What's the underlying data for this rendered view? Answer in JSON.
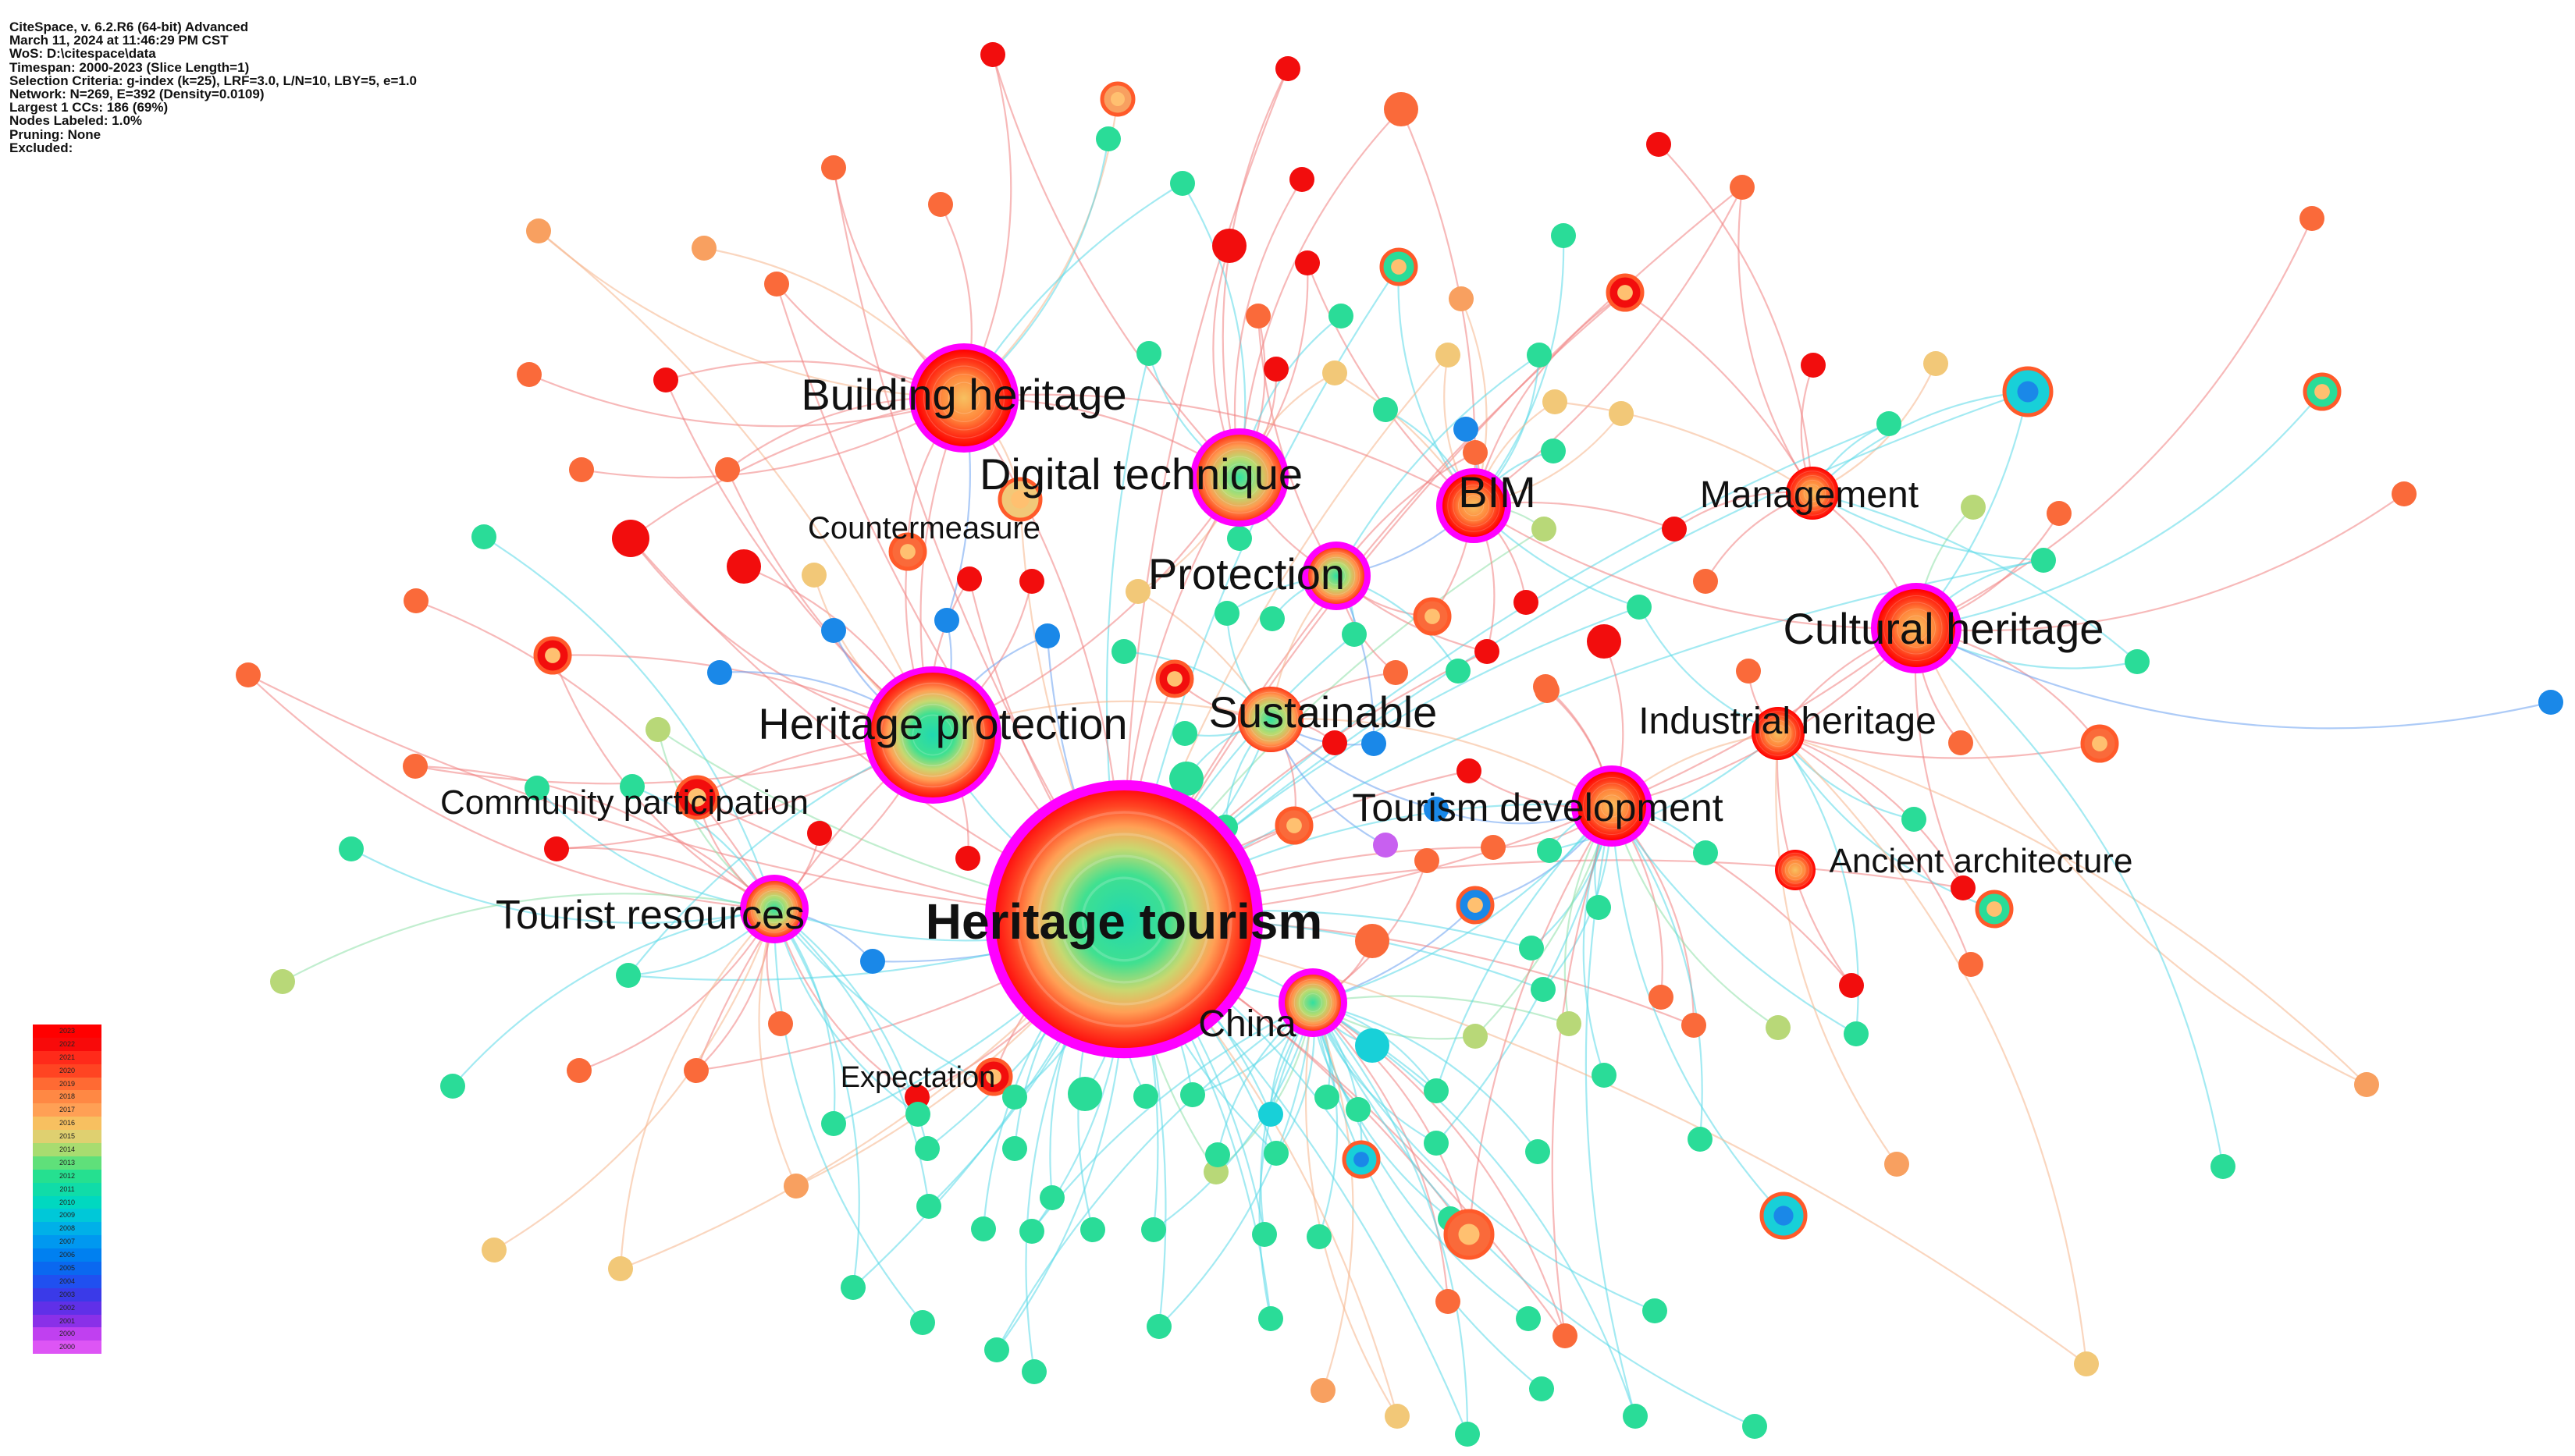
{
  "info_lines": [
    "CiteSpace, v. 6.2.R6 (64-bit) Advanced",
    "March 11, 2024 at 11:46:29 PM CST",
    "WoS: D:\\citespace\\data",
    "Timespan: 2000-2023 (Slice Length=1)",
    "Selection Criteria: g-index (k=25), LRF=3.0, L/N=10, LBY=5, e=1.0",
    "Network: N=269, E=392 (Density=0.0109)",
    "Largest 1 CCs: 186 (69%)",
    "Nodes Labeled: 1.0%",
    "Pruning: None",
    "Excluded:"
  ],
  "legend": [
    {
      "year": "2023",
      "color": "#ff0000"
    },
    {
      "year": "2022",
      "color": "#f80a0a"
    },
    {
      "year": "2021",
      "color": "#ff2a1a"
    },
    {
      "year": "2020",
      "color": "#ff4422"
    },
    {
      "year": "2019",
      "color": "#ff6a33"
    },
    {
      "year": "2018",
      "color": "#ff8844"
    },
    {
      "year": "2017",
      "color": "#ffa055"
    },
    {
      "year": "2016",
      "color": "#f7c060"
    },
    {
      "year": "2015",
      "color": "#dfd070"
    },
    {
      "year": "2014",
      "color": "#a8dc70"
    },
    {
      "year": "2013",
      "color": "#5fe07a"
    },
    {
      "year": "2012",
      "color": "#25e090"
    },
    {
      "year": "2011",
      "color": "#10dca8"
    },
    {
      "year": "2010",
      "color": "#00d8c0"
    },
    {
      "year": "2009",
      "color": "#00c8d8"
    },
    {
      "year": "2008",
      "color": "#00b0e8"
    },
    {
      "year": "2007",
      "color": "#0098f0"
    },
    {
      "year": "2006",
      "color": "#0080f0"
    },
    {
      "year": "2005",
      "color": "#0a68f0"
    },
    {
      "year": "2004",
      "color": "#2050f0"
    },
    {
      "year": "2003",
      "color": "#3a3ae8"
    },
    {
      "year": "2002",
      "color": "#6030e8"
    },
    {
      "year": "2001",
      "color": "#8a30e8"
    },
    {
      "year": "2000",
      "color": "#c040f0"
    },
    {
      "year": "2000",
      "color": "#dd55f5"
    }
  ],
  "keywords": [
    {
      "label": "Heritage tourism",
      "bold": true
    },
    {
      "label": "Building heritage"
    },
    {
      "label": "Digital technique"
    },
    {
      "label": "BIM"
    },
    {
      "label": "Management"
    },
    {
      "label": "Countermeasure"
    },
    {
      "label": "Protection"
    },
    {
      "label": "Cultural heritage"
    },
    {
      "label": "Heritage protection"
    },
    {
      "label": "Sustainable"
    },
    {
      "label": "Industrial heritage"
    },
    {
      "label": "Community participation"
    },
    {
      "label": "Tourism development"
    },
    {
      "label": "Ancient architecture"
    },
    {
      "label": "Tourist resources"
    },
    {
      "label": "China"
    },
    {
      "label": "Expectation"
    }
  ],
  "colors": {
    "burst_ring": "#ff00ff",
    "edge_red": "#f08080",
    "edge_orange": "#f6b48a",
    "edge_cyan": "#58d8e8",
    "edge_green": "#8ee0a8",
    "edge_blue": "#6aa0f0"
  }
}
